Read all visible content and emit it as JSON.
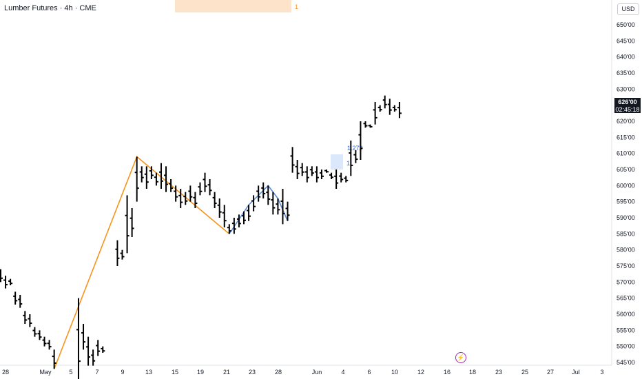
{
  "header": {
    "title": "Lumber Futures · 4h · CME",
    "currency": "USD"
  },
  "annotations": {
    "fib_top_label": "1",
    "blue_label_1": "1.272",
    "blue_label_2": "1",
    "bolt_icon": "lightning-icon"
  },
  "price_tag": {
    "value": "626'00",
    "countdown": "02:45:18"
  },
  "colors": {
    "bars": "#000000",
    "fib_line": "#f7931a",
    "blue_line": "#5b8bd9",
    "tag_bg": "#131722"
  },
  "chart_data": {
    "type": "ohlc",
    "title": "Lumber Futures · 4h · CME",
    "x_ticks": [
      "28",
      "May",
      "5",
      "7",
      "9",
      "13",
      "15",
      "19",
      "21",
      "23",
      "28",
      "Jun",
      "4",
      "6",
      "10",
      "12",
      "16",
      "18",
      "23",
      "25",
      "27",
      "Jul",
      "3"
    ],
    "y_ticks": [
      "545'00",
      "550'00",
      "555'00",
      "560'00",
      "565'00",
      "570'00",
      "575'00",
      "580'00",
      "585'00",
      "590'00",
      "595'00",
      "600'00",
      "605'00",
      "610'00",
      "615'00",
      "620'00",
      "625'00",
      "630'00",
      "635'00",
      "640'00",
      "645'00",
      "650'00"
    ],
    "ylim": [
      545,
      650
    ],
    "grid": false,
    "bars": [
      [
        1,
        574,
        570
      ],
      [
        2,
        572,
        568
      ],
      [
        3,
        571,
        569
      ],
      [
        4,
        567,
        563
      ],
      [
        5,
        566,
        562
      ],
      [
        6,
        561,
        557
      ],
      [
        7,
        560,
        556
      ],
      [
        8,
        556,
        553
      ],
      [
        9,
        555,
        552
      ],
      [
        10,
        553,
        550
      ],
      [
        11,
        552,
        549
      ],
      [
        12,
        549,
        543
      ],
      [
        17,
        565,
        537
      ],
      [
        18,
        557,
        549
      ],
      [
        19,
        553,
        544
      ],
      [
        20,
        549,
        544
      ],
      [
        21,
        552,
        547
      ],
      [
        22,
        550,
        548
      ],
      [
        25,
        583,
        575
      ],
      [
        26,
        580,
        577
      ],
      [
        27,
        597,
        579
      ],
      [
        28,
        593,
        584
      ],
      [
        29,
        609,
        595
      ],
      [
        30,
        606,
        601
      ],
      [
        31,
        606,
        599
      ],
      [
        32,
        606,
        602
      ],
      [
        33,
        604,
        600
      ],
      [
        34,
        607,
        599
      ],
      [
        35,
        606,
        598
      ],
      [
        36,
        602,
        598
      ],
      [
        37,
        600,
        595
      ],
      [
        38,
        599,
        593
      ],
      [
        39,
        598,
        594
      ],
      [
        40,
        600,
        595
      ],
      [
        41,
        598,
        593
      ],
      [
        42,
        601,
        597
      ],
      [
        43,
        604,
        598
      ],
      [
        44,
        602,
        597
      ],
      [
        45,
        598,
        593
      ],
      [
        46,
        596,
        590
      ],
      [
        47,
        594,
        587
      ],
      [
        48,
        588,
        585
      ],
      [
        49,
        590,
        585
      ],
      [
        50,
        591,
        587
      ],
      [
        51,
        592,
        588
      ],
      [
        52,
        594,
        589
      ],
      [
        53,
        597,
        592
      ],
      [
        54,
        600,
        595
      ],
      [
        55,
        601,
        596
      ],
      [
        56,
        600,
        594
      ],
      [
        57,
        598,
        591
      ],
      [
        58,
        596,
        591
      ],
      [
        59,
        599,
        588
      ],
      [
        60,
        595,
        589
      ],
      [
        61,
        612,
        604
      ],
      [
        62,
        608,
        602
      ],
      [
        63,
        607,
        603
      ],
      [
        64,
        606,
        601
      ],
      [
        65,
        606,
        603
      ],
      [
        66,
        606,
        601
      ],
      [
        67,
        605,
        602
      ],
      [
        68,
        605,
        604
      ],
      [
        69,
        604,
        602
      ],
      [
        70,
        605,
        599
      ],
      [
        71,
        604,
        601
      ],
      [
        72,
        603,
        601
      ],
      [
        73,
        614,
        603
      ],
      [
        74,
        611,
        607
      ],
      [
        75,
        620,
        608
      ],
      [
        76,
        620,
        618
      ],
      [
        77,
        619,
        618
      ],
      [
        78,
        626,
        619
      ],
      [
        79,
        625,
        623
      ],
      [
        80,
        628,
        624
      ],
      [
        81,
        627,
        622
      ],
      [
        82,
        625,
        623
      ],
      [
        83,
        626,
        621
      ]
    ],
    "fib_path": [
      [
        12,
        543
      ],
      [
        29,
        609
      ],
      [
        48,
        585
      ]
    ],
    "blue_path": [
      [
        48,
        585
      ],
      [
        52,
        594
      ],
      [
        56,
        600
      ],
      [
        58,
        596
      ],
      [
        60,
        589
      ]
    ]
  }
}
